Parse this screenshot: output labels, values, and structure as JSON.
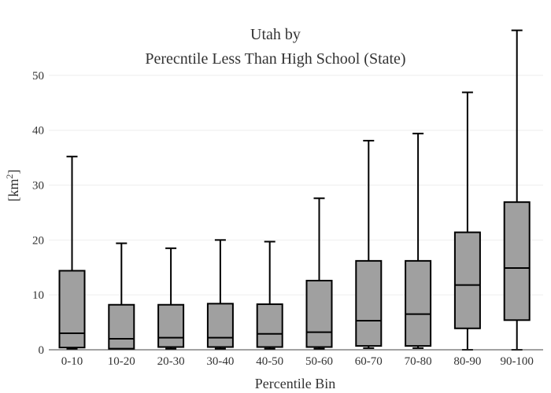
{
  "chart_data": {
    "type": "box",
    "title_line1": "Utah  by",
    "title_line2": "Perecntile Less Than High School (State)",
    "xlabel": "Percentile Bin",
    "ylabel": "[km",
    "ylabel_sup": "2",
    "ylabel_close": "]",
    "ylim": [
      0,
      58
    ],
    "yticks": [
      "0",
      "10",
      "20",
      "30",
      "40",
      "50"
    ],
    "ytick_values": [
      0,
      10,
      20,
      30,
      40,
      50
    ],
    "grid": true,
    "box_color": "#a0a0a0",
    "categories": [
      "0-10",
      "10-20",
      "20-30",
      "30-40",
      "40-50",
      "50-60",
      "60-70",
      "70-80",
      "80-90",
      "90-100"
    ],
    "boxes": [
      {
        "min": 0.2,
        "q1": 0.4,
        "median": 3.0,
        "q3": 14.4,
        "max": 35.2
      },
      {
        "min": 0.1,
        "q1": 0.2,
        "median": 2.0,
        "q3": 8.2,
        "max": 19.4
      },
      {
        "min": 0.2,
        "q1": 0.5,
        "median": 2.2,
        "q3": 8.2,
        "max": 18.5
      },
      {
        "min": 0.2,
        "q1": 0.5,
        "median": 2.2,
        "q3": 8.4,
        "max": 20.0
      },
      {
        "min": 0.2,
        "q1": 0.5,
        "median": 2.9,
        "q3": 8.3,
        "max": 19.7
      },
      {
        "min": 0.2,
        "q1": 0.5,
        "median": 3.2,
        "q3": 12.6,
        "max": 27.6
      },
      {
        "min": 0.3,
        "q1": 0.7,
        "median": 5.3,
        "q3": 16.2,
        "max": 38.1
      },
      {
        "min": 0.3,
        "q1": 0.7,
        "median": 6.5,
        "q3": 16.2,
        "max": 39.4
      },
      {
        "min": 0.0,
        "q1": 3.9,
        "median": 11.8,
        "q3": 21.4,
        "max": 46.9
      },
      {
        "min": 0.0,
        "q1": 5.4,
        "median": 14.9,
        "q3": 26.9,
        "max": 58.2
      }
    ]
  }
}
